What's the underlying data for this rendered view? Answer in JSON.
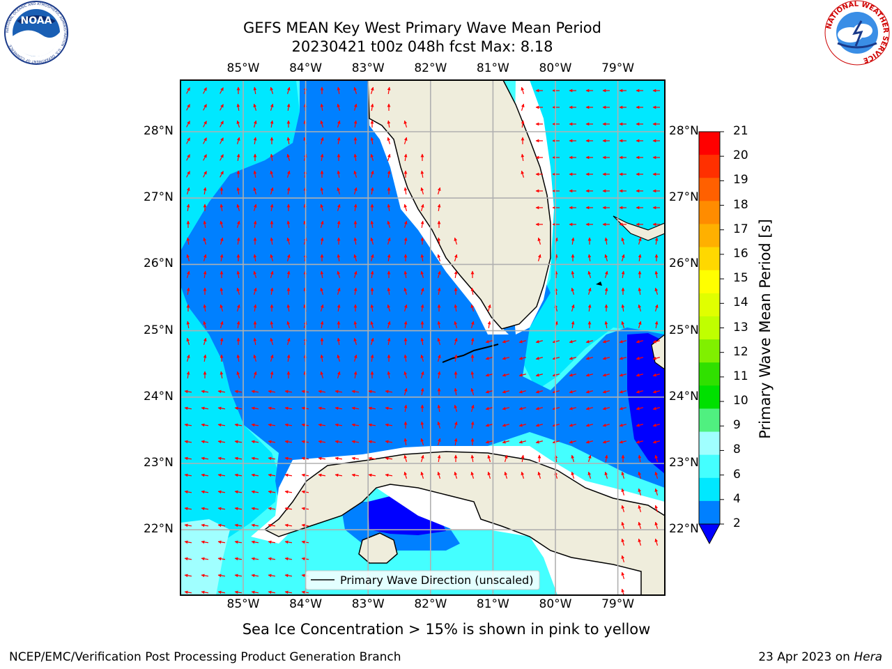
{
  "header": {
    "title_line1": "GEFS MEAN Key West Primary Wave Mean Period",
    "title_line2": "20230421 t00z 048h fcst   Max: 8.18",
    "left_logo": "NOAA",
    "left_logo_ring_text": "NATIONAL OCEANIC AND ATMOSPHERIC ADMINISTRATION · U.S. DEPARTMENT OF COMMERCE",
    "right_logo_ring_text": "NATIONAL WEATHER SERVICE"
  },
  "map": {
    "lon_labels": [
      "85°W",
      "84°W",
      "83°W",
      "82°W",
      "81°W",
      "80°W",
      "79°W"
    ],
    "lat_labels": [
      "28°N",
      "27°N",
      "26°N",
      "25°N",
      "24°N",
      "23°N",
      "22°N"
    ],
    "legend_text": "Primary Wave Direction (unscaled)",
    "colors": {
      "land": "#efeddc",
      "period_2_4": "#0080ff",
      "period_4_6": "#00e8ff",
      "period_6_8": "#44ffff",
      "period_8_9": "#a0ffff",
      "period_below_2": "#0000ff",
      "arrow": "#ff0000",
      "grid": "#b0b0b0"
    }
  },
  "colorbar": {
    "label": "Primary Wave Mean Period [s]",
    "ticks": [
      "21",
      "20",
      "19",
      "18",
      "17",
      "16",
      "15",
      "14",
      "13",
      "12",
      "11",
      "10",
      "9",
      "8",
      "6",
      "4",
      "2"
    ],
    "segment_colors": [
      "#ff0000",
      "#ff3000",
      "#ff6000",
      "#ff8c00",
      "#ffb000",
      "#ffd800",
      "#ffff00",
      "#e0ff00",
      "#c0ff00",
      "#80f000",
      "#30e000",
      "#00e000",
      "#50f080",
      "#a0ffff",
      "#44ffff",
      "#00e8ff",
      "#0080ff"
    ],
    "under_color": "#0000ff"
  },
  "footer": {
    "subtitle": "Sea Ice Concentration > 15% is shown in pink to yellow",
    "credit": "NCEP/EMC/Verification Post Processing Product Generation Branch",
    "date_prefix": "23 Apr 2023 on ",
    "date_machine": "Hera"
  }
}
